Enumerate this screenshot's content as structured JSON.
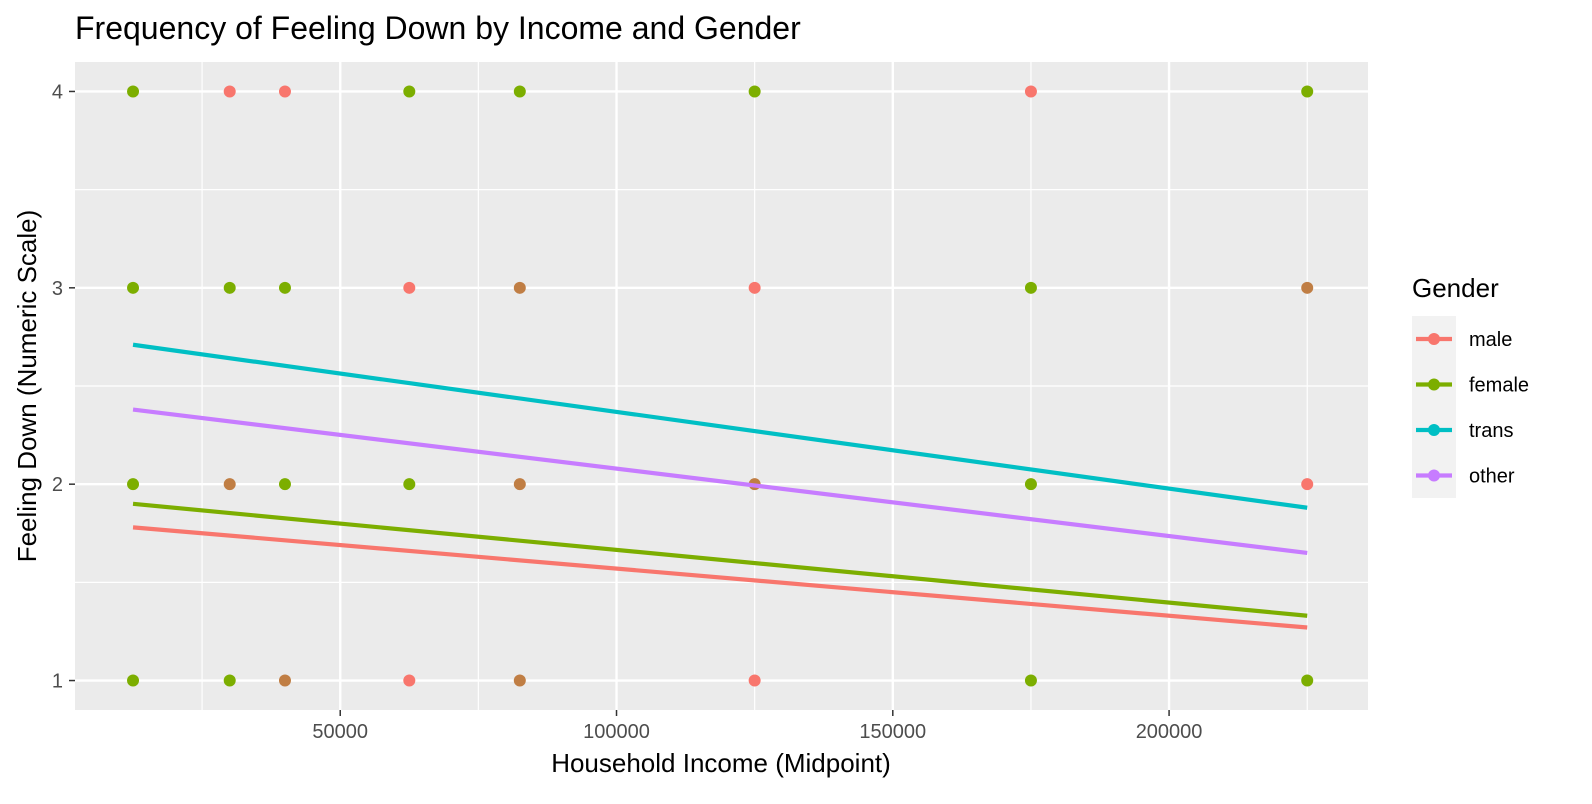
{
  "chart_data": {
    "type": "scatter",
    "title": "Frequency of Feeling Down by Income and Gender",
    "xlabel": "Household Income (Midpoint)",
    "ylabel": "Feeling Down (Numeric Scale)",
    "xlim": [
      2000,
      236000
    ],
    "ylim": [
      0.85,
      4.15
    ],
    "x_ticks": [
      50000,
      100000,
      150000,
      200000
    ],
    "x_tick_labels": [
      "50000",
      "100000",
      "150000",
      "200000"
    ],
    "y_ticks": [
      1,
      2,
      3,
      4
    ],
    "y_tick_labels": [
      "1",
      "2",
      "3",
      "4"
    ],
    "x_minor_ticks": [
      25000,
      75000,
      125000,
      175000,
      225000
    ],
    "y_minor_ticks": [
      1.5,
      2.5,
      3.5
    ],
    "grid": true,
    "legend": {
      "title": "Gender",
      "position": "right"
    },
    "series": [
      {
        "name": "male",
        "color": "#F8766D",
        "line": [
          [
            12500,
            1.78
          ],
          [
            225000,
            1.27
          ]
        ],
        "points": [
          [
            30000,
            4
          ],
          [
            40000,
            4
          ],
          [
            62500,
            3
          ],
          [
            125000,
            3
          ],
          [
            125000,
            1
          ],
          [
            175000,
            4
          ],
          [
            62500,
            1
          ],
          [
            225000,
            2
          ]
        ]
      },
      {
        "name": "female",
        "color": "#7CAE00",
        "line": [
          [
            12500,
            1.9
          ],
          [
            225000,
            1.33
          ]
        ],
        "points": [
          [
            12500,
            4
          ],
          [
            12500,
            3
          ],
          [
            12500,
            2
          ],
          [
            12500,
            1
          ],
          [
            30000,
            3
          ],
          [
            30000,
            1
          ],
          [
            40000,
            3
          ],
          [
            40000,
            2
          ],
          [
            62500,
            4
          ],
          [
            62500,
            2
          ],
          [
            82500,
            4
          ],
          [
            125000,
            4
          ],
          [
            175000,
            3
          ],
          [
            175000,
            2
          ],
          [
            175000,
            1
          ],
          [
            225000,
            4
          ],
          [
            225000,
            1
          ]
        ]
      },
      {
        "name": "trans",
        "color": "#00BFC4",
        "line": [
          [
            12500,
            2.71
          ],
          [
            225000,
            1.88
          ]
        ],
        "points": []
      },
      {
        "name": "other",
        "color": "#C77CFF",
        "line": [
          [
            12500,
            2.38
          ],
          [
            225000,
            1.65
          ]
        ],
        "points": []
      }
    ],
    "overlap_points": [
      [
        30000,
        2
      ],
      [
        40000,
        1
      ],
      [
        82500,
        3
      ],
      [
        82500,
        2
      ],
      [
        82500,
        1
      ],
      [
        125000,
        2
      ],
      [
        225000,
        3
      ]
    ],
    "overlap_color": "#C07E44"
  }
}
